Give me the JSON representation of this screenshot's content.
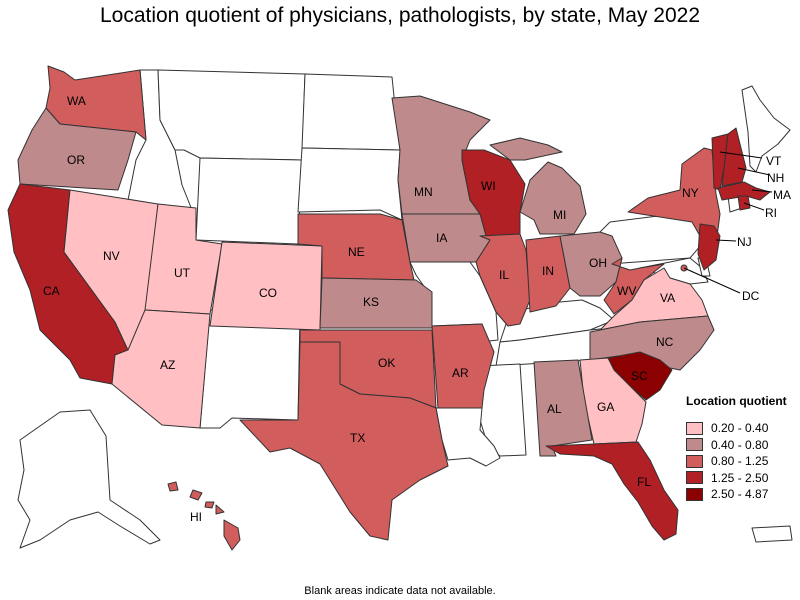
{
  "title": "Location quotient of physicians, pathologists, by state, May 2022",
  "footnote": "Blank areas indicate data not available.",
  "colors": {
    "none": "#ffffff",
    "c1": "#ffbfc3",
    "c2": "#bf8a8c",
    "c3": "#d15d5d",
    "c4": "#b02025",
    "c5": "#8b0000",
    "border": "#333333"
  },
  "legend": {
    "title": "Location quotient",
    "items": [
      {
        "label": "0.20 - 0.40",
        "color": "#ffbfc3"
      },
      {
        "label": "0.40 - 0.80",
        "color": "#bf8a8c"
      },
      {
        "label": "0.80 - 1.25",
        "color": "#d15d5d"
      },
      {
        "label": "1.25 - 2.50",
        "color": "#b02025"
      },
      {
        "label": "2.50 - 4.87",
        "color": "#8b0000"
      }
    ]
  },
  "states": [
    {
      "abbr": "WA",
      "class": "0.80 - 1.25"
    },
    {
      "abbr": "OR",
      "class": "0.40 - 0.80"
    },
    {
      "abbr": "CA",
      "class": "1.25 - 2.50"
    },
    {
      "abbr": "NV",
      "class": "0.20 - 0.40"
    },
    {
      "abbr": "UT",
      "class": "0.20 - 0.40"
    },
    {
      "abbr": "AZ",
      "class": "0.20 - 0.40"
    },
    {
      "abbr": "CO",
      "class": "0.20 - 0.40"
    },
    {
      "abbr": "NE",
      "class": "0.80 - 1.25"
    },
    {
      "abbr": "KS",
      "class": "0.40 - 0.80"
    },
    {
      "abbr": "OK",
      "class": "0.80 - 1.25"
    },
    {
      "abbr": "TX",
      "class": "0.80 - 1.25"
    },
    {
      "abbr": "MN",
      "class": "0.40 - 0.80"
    },
    {
      "abbr": "IA",
      "class": "0.40 - 0.80"
    },
    {
      "abbr": "AR",
      "class": "0.80 - 1.25"
    },
    {
      "abbr": "WI",
      "class": "1.25 - 2.50"
    },
    {
      "abbr": "IL",
      "class": "0.80 - 1.25"
    },
    {
      "abbr": "MI",
      "class": "0.40 - 0.80"
    },
    {
      "abbr": "IN",
      "class": "0.80 - 1.25"
    },
    {
      "abbr": "OH",
      "class": "0.40 - 0.80"
    },
    {
      "abbr": "WV",
      "class": "0.80 - 1.25"
    },
    {
      "abbr": "VA",
      "class": "0.20 - 0.40"
    },
    {
      "abbr": "NC",
      "class": "0.40 - 0.80"
    },
    {
      "abbr": "SC",
      "class": "2.50 - 4.87"
    },
    {
      "abbr": "GA",
      "class": "0.20 - 0.40"
    },
    {
      "abbr": "AL",
      "class": "0.40 - 0.80"
    },
    {
      "abbr": "FL",
      "class": "1.25 - 2.50"
    },
    {
      "abbr": "NY",
      "class": "0.80 - 1.25"
    },
    {
      "abbr": "NJ",
      "class": "1.25 - 2.50"
    },
    {
      "abbr": "VT",
      "class": "1.25 - 2.50"
    },
    {
      "abbr": "NH",
      "class": "1.25 - 2.50"
    },
    {
      "abbr": "MA",
      "class": "1.25 - 2.50"
    },
    {
      "abbr": "RI",
      "class": "1.25 - 2.50"
    },
    {
      "abbr": "DC",
      "class": "0.80 - 1.25"
    },
    {
      "abbr": "HI",
      "class": "0.80 - 1.25"
    }
  ]
}
